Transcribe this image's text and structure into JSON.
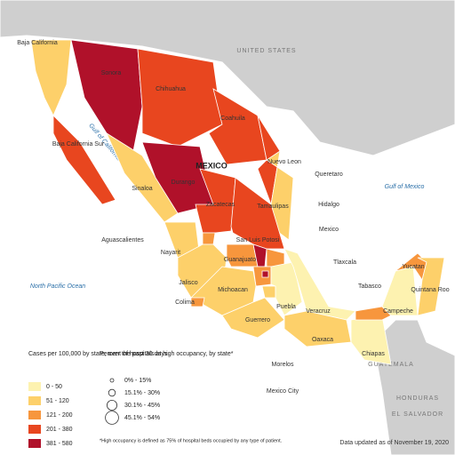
{
  "map": {
    "country_label": "MEXICO",
    "neighbors": [
      "UNITED STATES",
      "GUATEMALA",
      "HONDURAS",
      "EL SALVADOR"
    ],
    "water": [
      "Gulf of California",
      "Gulf of Mexico",
      "North Pacific Ocean"
    ],
    "states": [
      {
        "name": "Baja California",
        "color": "#fdd06a"
      },
      {
        "name": "Sonora",
        "color": "#b0112a"
      },
      {
        "name": "Chihuahua",
        "color": "#e8461f"
      },
      {
        "name": "Coahuila",
        "color": "#e8461f"
      },
      {
        "name": "Nuevo Leon",
        "color": "#e8461f"
      },
      {
        "name": "Tamaulipas",
        "color": "#fdd06a"
      },
      {
        "name": "Baja California Sur",
        "color": "#e8461f"
      },
      {
        "name": "Sinaloa",
        "color": "#fdd06a"
      },
      {
        "name": "Durango",
        "color": "#b0112a"
      },
      {
        "name": "Zacatecas",
        "color": "#e8461f"
      },
      {
        "name": "San Luis Potosi",
        "color": "#e8461f"
      },
      {
        "name": "Nayarit",
        "color": "#fdd06a"
      },
      {
        "name": "Aguascalientes",
        "color": "#f7963d"
      },
      {
        "name": "Jalisco",
        "color": "#fdd06a"
      },
      {
        "name": "Guanajuato",
        "color": "#f7963d"
      },
      {
        "name": "Queretaro",
        "color": "#b0112a"
      },
      {
        "name": "Hidalgo",
        "color": "#f7963d"
      },
      {
        "name": "Mexico",
        "color": "#f7963d"
      },
      {
        "name": "Mexico City",
        "color": "#b0112a"
      },
      {
        "name": "Michoacan",
        "color": "#fdd06a"
      },
      {
        "name": "Colima",
        "color": "#f7963d"
      },
      {
        "name": "Guerrero",
        "color": "#fdd06a"
      },
      {
        "name": "Morelos",
        "color": "#fdd06a"
      },
      {
        "name": "Tlaxcala",
        "color": "#fdf2b0"
      },
      {
        "name": "Puebla",
        "color": "#fdf2b0"
      },
      {
        "name": "Veracruz",
        "color": "#fdf2b0"
      },
      {
        "name": "Oaxaca",
        "color": "#fdd06a"
      },
      {
        "name": "Chiapas",
        "color": "#fdf2b0"
      },
      {
        "name": "Tabasco",
        "color": "#f7963d"
      },
      {
        "name": "Campeche",
        "color": "#fdf2b0"
      },
      {
        "name": "Yucatan",
        "color": "#f7963d"
      },
      {
        "name": "Quintana Roo",
        "color": "#fdd06a"
      }
    ]
  },
  "legend_cases": {
    "title": "Cases per 100,000 by state, over the past 30 days",
    "bins": [
      {
        "label": "0 - 50",
        "color": "#fdf2b0"
      },
      {
        "label": "51 - 120",
        "color": "#fdd06a"
      },
      {
        "label": "121 - 200",
        "color": "#f7963d"
      },
      {
        "label": "201 - 380",
        "color": "#e8461f"
      },
      {
        "label": "381 - 580",
        "color": "#b0112a"
      }
    ]
  },
  "legend_hospitals": {
    "title": "Percent of hospitals at high occupancy, by state*",
    "bins": [
      "0% - 15%",
      "15.1% - 30%",
      "30.1% - 45%",
      "45.1% - 54%"
    ],
    "note": "*High occupancy is defined as 75% of hospital beds occupied by any type of patient."
  },
  "footer": "Data updated as of November 19, 2020"
}
